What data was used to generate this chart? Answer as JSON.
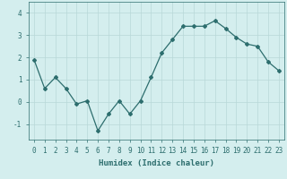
{
  "x": [
    0,
    1,
    2,
    3,
    4,
    5,
    6,
    7,
    8,
    9,
    10,
    11,
    12,
    13,
    14,
    15,
    16,
    17,
    18,
    19,
    20,
    21,
    22,
    23
  ],
  "y": [
    1.9,
    0.6,
    1.1,
    0.6,
    -0.1,
    0.05,
    -1.3,
    -0.55,
    0.05,
    -0.55,
    0.05,
    1.1,
    2.2,
    2.8,
    3.4,
    3.4,
    3.4,
    3.65,
    3.3,
    2.9,
    2.6,
    2.5,
    1.8,
    1.4
  ],
  "line_color": "#2d6e6e",
  "marker": "D",
  "markersize": 2.0,
  "linewidth": 0.9,
  "background_color": "#d4eeee",
  "grid_color": "#b8d8d8",
  "xlabel": "Humidex (Indice chaleur)",
  "xlim": [
    -0.5,
    23.5
  ],
  "ylim": [
    -1.7,
    4.5
  ],
  "yticks": [
    -1,
    0,
    1,
    2,
    3,
    4
  ],
  "xticks": [
    0,
    1,
    2,
    3,
    4,
    5,
    6,
    7,
    8,
    9,
    10,
    11,
    12,
    13,
    14,
    15,
    16,
    17,
    18,
    19,
    20,
    21,
    22,
    23
  ],
  "tick_fontsize": 5.5,
  "label_fontsize": 6.5
}
